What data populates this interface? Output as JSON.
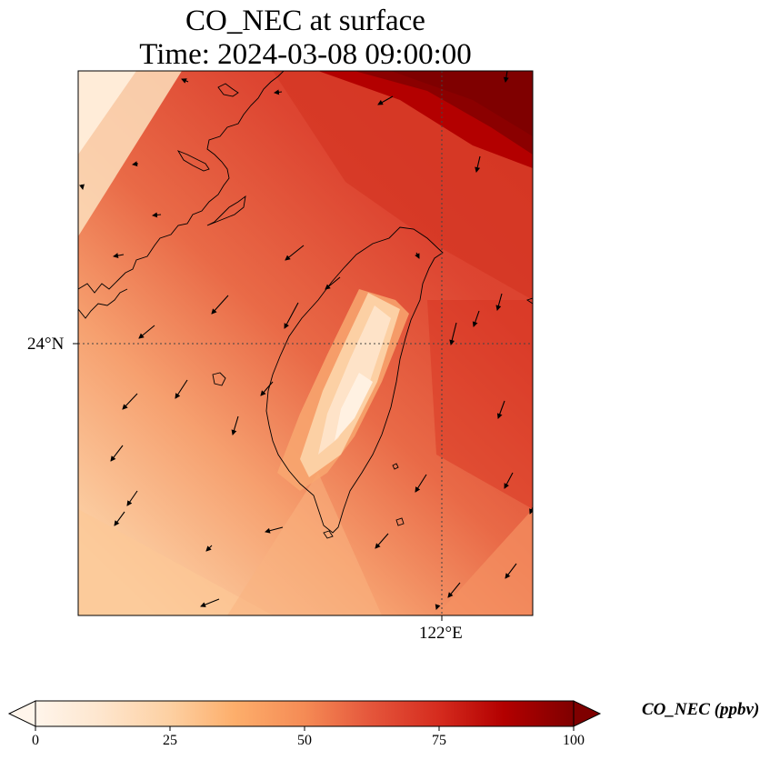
{
  "title": {
    "line1": "CO_NEC at surface",
    "line2": "Time: 2024-03-08 09:00:00"
  },
  "map": {
    "variable": "CO_NEC",
    "level": "surface",
    "gridlines": {
      "latitudes": [
        "24°N"
      ],
      "longitudes": [
        "122°E"
      ]
    },
    "gridline_style": "dotted",
    "coastline": "Taiwan and southeast China coast (Fujian)",
    "field_description_colors": {
      "low": "#fff5eb",
      "mid": "#f58b55",
      "high": "#d52b1e",
      "max": "#7f0000"
    },
    "wind_vectors": "black arrows, predominantly northeasterly flow (pointing southwest)"
  },
  "axes": {
    "y_tick_label": "24°N",
    "x_tick_label": "122°E"
  },
  "colorbar": {
    "label": "CO_NEC (ppbv)",
    "ticks": [
      "0",
      "25",
      "50",
      "75",
      "100"
    ],
    "range": [
      0,
      100
    ],
    "extend": "both",
    "colormap": "OrRd",
    "colors": [
      "#fff5eb",
      "#fee6ce",
      "#fdd0a2",
      "#fdae6b",
      "#f58b55",
      "#e5573c",
      "#d52b1e",
      "#b30000",
      "#7f0000"
    ]
  }
}
